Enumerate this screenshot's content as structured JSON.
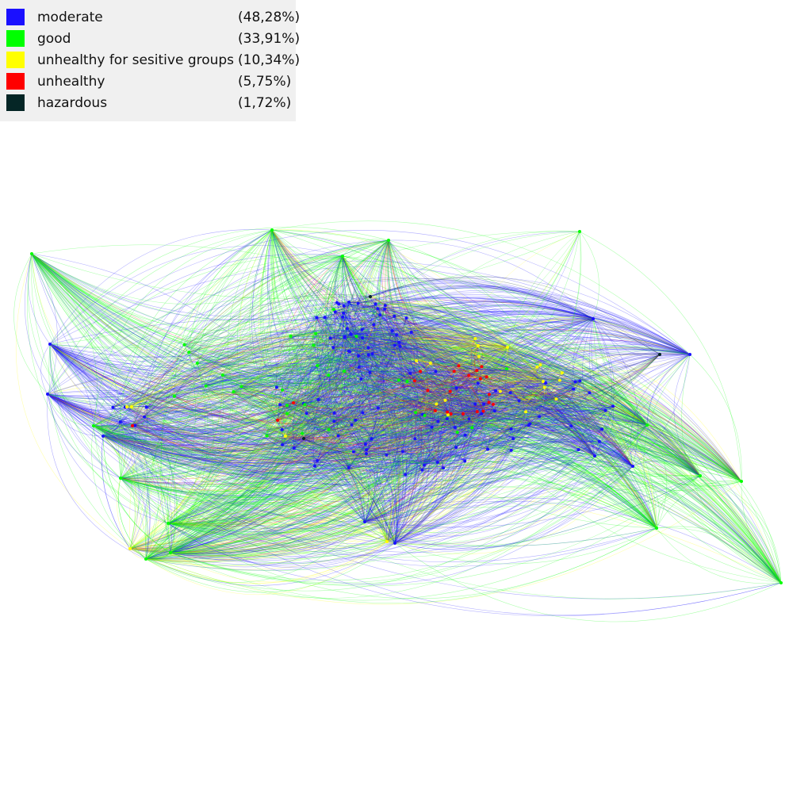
{
  "legend": {
    "items": [
      {
        "label": "moderate",
        "percent": "(48,28%)",
        "color": "#1a10ff"
      },
      {
        "label": "good",
        "percent": "(33,91%)",
        "color": "#00ff00"
      },
      {
        "label": "unhealthy for sesitive groups",
        "percent": "(10,34%)",
        "color": "#ffff00"
      },
      {
        "label": "unhealthy",
        "percent": "(5,75%)",
        "color": "#ff0000"
      },
      {
        "label": "hazardous",
        "percent": "(1,72%)",
        "color": "#052626"
      }
    ]
  },
  "graph": {
    "edge_opacity": 0.35,
    "colors": {
      "moderate": "#1a10ff",
      "good": "#00ff00",
      "unhealthy_sensitive": "#ffff00",
      "unhealthy": "#ff0000",
      "hazardous": "#052626"
    }
  }
}
